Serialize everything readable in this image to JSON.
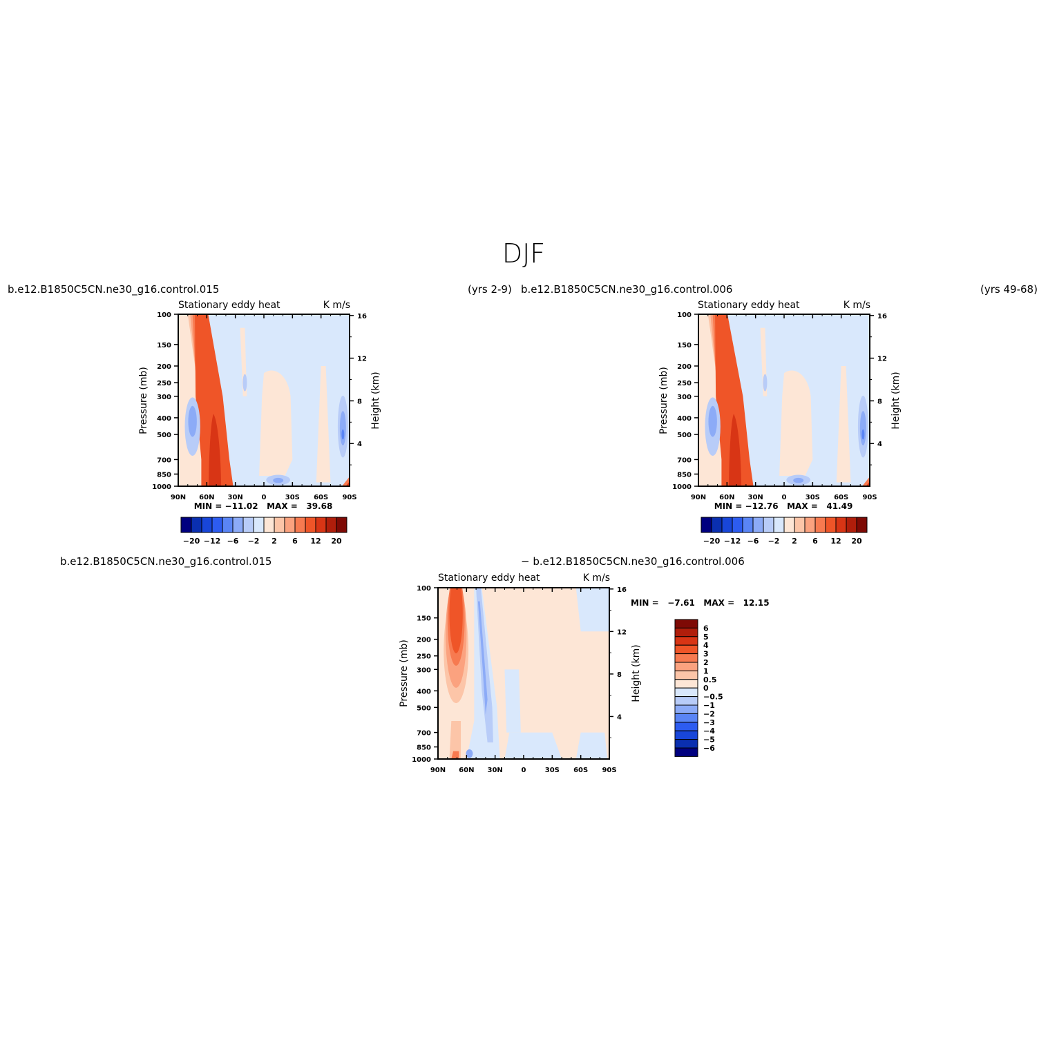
{
  "figure": {
    "title": "DJF",
    "colors": {
      "abs_scale": [
        "#00007f",
        "#0a2fb0",
        "#1846d9",
        "#2d5cf0",
        "#5a85f5",
        "#8cabf7",
        "#b8ccf8",
        "#d9e8fc",
        "#fde6d6",
        "#fcc5a8",
        "#fba27f",
        "#f77a50",
        "#ef5528",
        "#d83515",
        "#b01e0b",
        "#7e0a05"
      ],
      "diff_scale": [
        "#00007f",
        "#0a2fb0",
        "#1846d9",
        "#2d5cf0",
        "#5a85f5",
        "#8cabf7",
        "#b8ccf8",
        "#d9e8fc",
        "#fde6d6",
        "#fcc5a8",
        "#fba27f",
        "#f77a50",
        "#ef5528",
        "#d83515",
        "#b01e0b",
        "#7e0a05"
      ]
    }
  },
  "panels": [
    {
      "id": "case1",
      "left_title": "b.e12.B1850C5CN.ne30_g16.control.015",
      "right_title": "(yrs 2-9)",
      "subtitle_left": "Stationary eddy heat",
      "subtitle_right": "K m/s",
      "ylabel_left": "Pressure (mb)",
      "ylabel_right": "Height (km)",
      "minmax": "MIN = −11.02   MAX =   39.68",
      "colorbar_labels": [
        "−20",
        "−12",
        "−6",
        "−2",
        "2",
        "6",
        "12",
        "20"
      ]
    },
    {
      "id": "case2",
      "left_title": "b.e12.B1850C5CN.ne30_g16.control.006",
      "right_title": "(yrs 49-68)",
      "subtitle_left": "Stationary eddy heat",
      "subtitle_right": "K m/s",
      "ylabel_left": "Pressure (mb)",
      "ylabel_right": "Height (km)",
      "minmax": "MIN = −12.76   MAX =   41.49",
      "colorbar_labels": [
        "−20",
        "−12",
        "−6",
        "−2",
        "2",
        "6",
        "12",
        "20"
      ]
    },
    {
      "id": "difference",
      "left_title": "b.e12.B1850C5CN.ne30_g16.control.015",
      "right_title": "− b.e12.B1850C5CN.ne30_g16.control.006",
      "subtitle_left": "Stationary eddy heat",
      "subtitle_right": "K m/s",
      "ylabel_left": "Pressure (mb)",
      "ylabel_right": "Height (km)",
      "minmax": "MIN =   −7.61   MAX =   12.15",
      "colorbar_labels": [
        "6",
        "5",
        "4",
        "3",
        "2",
        "1",
        "0.5",
        "0",
        "−0.5",
        "−1",
        "−2",
        "−3",
        "−4",
        "−5",
        "−6"
      ]
    }
  ],
  "axes": {
    "x_ticks": [
      "90N",
      "60N",
      "30N",
      "0",
      "30S",
      "60S",
      "90S"
    ],
    "p_ticks": [
      "100",
      "150",
      "200",
      "250",
      "300",
      "400",
      "500",
      "700",
      "850",
      "1000"
    ],
    "z_ticks": [
      "16",
      "12",
      "8",
      "4"
    ]
  },
  "chart_data": [
    {
      "type": "heatmap",
      "title": "Stationary eddy heat",
      "units": "K m/s",
      "xlabel": "",
      "ylabel": "Pressure (mb)",
      "x_range": [
        90,
        -90
      ],
      "y_range_mb": [
        1000,
        100
      ],
      "log_y": true,
      "contour_levels": [
        -20,
        -16,
        -12,
        -9,
        -6,
        -4,
        -2,
        -1,
        1,
        2,
        4,
        6,
        9,
        12,
        16,
        20
      ],
      "min": -11.02,
      "max": 39.68,
      "features": [
        {
          "kind": "max",
          "lat": 45,
          "p_mb": 850,
          "approx_value": 39.68
        },
        {
          "kind": "min",
          "lat": 75,
          "p_mb": 400,
          "approx_value": -5
        },
        {
          "kind": "min",
          "lat": -85,
          "p_mb": 500,
          "approx_value": -6
        }
      ]
    },
    {
      "type": "heatmap",
      "title": "Stationary eddy heat",
      "units": "K m/s",
      "xlabel": "",
      "ylabel": "Pressure (mb)",
      "x_range": [
        90,
        -90
      ],
      "y_range_mb": [
        1000,
        100
      ],
      "log_y": true,
      "contour_levels": [
        -20,
        -16,
        -12,
        -9,
        -6,
        -4,
        -2,
        -1,
        1,
        2,
        4,
        6,
        9,
        12,
        16,
        20
      ],
      "min": -12.76,
      "max": 41.49,
      "features": [
        {
          "kind": "max",
          "lat": 45,
          "p_mb": 850,
          "approx_value": 41.49
        },
        {
          "kind": "min",
          "lat": 75,
          "p_mb": 400,
          "approx_value": -4
        },
        {
          "kind": "min",
          "lat": -85,
          "p_mb": 500,
          "approx_value": -6
        }
      ]
    },
    {
      "type": "heatmap",
      "title": "Stationary eddy heat",
      "units": "K m/s",
      "xlabel": "",
      "ylabel": "Pressure (mb)",
      "x_range": [
        90,
        -90
      ],
      "y_range_mb": [
        1000,
        100
      ],
      "log_y": true,
      "contour_levels": [
        -6,
        -5,
        -4,
        -3,
        -2,
        -1,
        -0.5,
        0,
        0.5,
        1,
        2,
        3,
        4,
        5,
        6
      ],
      "min": -7.61,
      "max": 12.15,
      "features": [
        {
          "kind": "max",
          "lat": 70,
          "p_mb": 180,
          "approx_value": 5
        },
        {
          "kind": "min",
          "lat": 40,
          "p_mb": 450,
          "approx_value": -3
        }
      ]
    }
  ]
}
